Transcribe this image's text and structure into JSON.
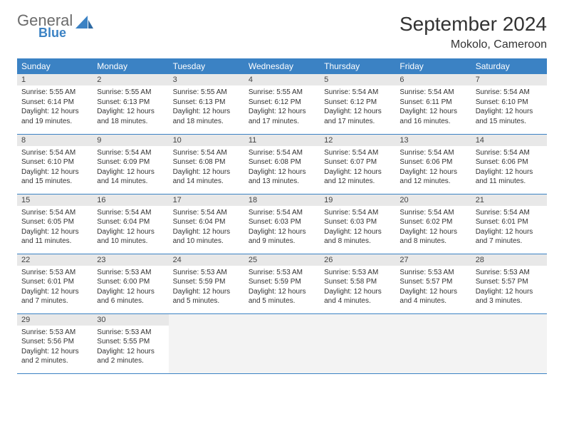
{
  "logo": {
    "general": "General",
    "blue": "Blue"
  },
  "title": "September 2024",
  "location": "Mokolo, Cameroon",
  "colors": {
    "header_bg": "#3b82c4",
    "header_fg": "#ffffff",
    "daynum_bg": "#e8e8e8",
    "row_divider": "#3b82c4",
    "logo_gray": "#6b6b6b",
    "logo_blue": "#3b82c4",
    "page_bg": "#ffffff",
    "text": "#333333"
  },
  "weekdays": [
    "Sunday",
    "Monday",
    "Tuesday",
    "Wednesday",
    "Thursday",
    "Friday",
    "Saturday"
  ],
  "grid": {
    "start_weekday": 0,
    "days_in_month": 30,
    "rows": 5,
    "cols": 7
  },
  "days": [
    {
      "n": 1,
      "sunrise": "5:55 AM",
      "sunset": "6:14 PM",
      "daylight": "12 hours and 19 minutes."
    },
    {
      "n": 2,
      "sunrise": "5:55 AM",
      "sunset": "6:13 PM",
      "daylight": "12 hours and 18 minutes."
    },
    {
      "n": 3,
      "sunrise": "5:55 AM",
      "sunset": "6:13 PM",
      "daylight": "12 hours and 18 minutes."
    },
    {
      "n": 4,
      "sunrise": "5:55 AM",
      "sunset": "6:12 PM",
      "daylight": "12 hours and 17 minutes."
    },
    {
      "n": 5,
      "sunrise": "5:54 AM",
      "sunset": "6:12 PM",
      "daylight": "12 hours and 17 minutes."
    },
    {
      "n": 6,
      "sunrise": "5:54 AM",
      "sunset": "6:11 PM",
      "daylight": "12 hours and 16 minutes."
    },
    {
      "n": 7,
      "sunrise": "5:54 AM",
      "sunset": "6:10 PM",
      "daylight": "12 hours and 15 minutes."
    },
    {
      "n": 8,
      "sunrise": "5:54 AM",
      "sunset": "6:10 PM",
      "daylight": "12 hours and 15 minutes."
    },
    {
      "n": 9,
      "sunrise": "5:54 AM",
      "sunset": "6:09 PM",
      "daylight": "12 hours and 14 minutes."
    },
    {
      "n": 10,
      "sunrise": "5:54 AM",
      "sunset": "6:08 PM",
      "daylight": "12 hours and 14 minutes."
    },
    {
      "n": 11,
      "sunrise": "5:54 AM",
      "sunset": "6:08 PM",
      "daylight": "12 hours and 13 minutes."
    },
    {
      "n": 12,
      "sunrise": "5:54 AM",
      "sunset": "6:07 PM",
      "daylight": "12 hours and 12 minutes."
    },
    {
      "n": 13,
      "sunrise": "5:54 AM",
      "sunset": "6:06 PM",
      "daylight": "12 hours and 12 minutes."
    },
    {
      "n": 14,
      "sunrise": "5:54 AM",
      "sunset": "6:06 PM",
      "daylight": "12 hours and 11 minutes."
    },
    {
      "n": 15,
      "sunrise": "5:54 AM",
      "sunset": "6:05 PM",
      "daylight": "12 hours and 11 minutes."
    },
    {
      "n": 16,
      "sunrise": "5:54 AM",
      "sunset": "6:04 PM",
      "daylight": "12 hours and 10 minutes."
    },
    {
      "n": 17,
      "sunrise": "5:54 AM",
      "sunset": "6:04 PM",
      "daylight": "12 hours and 10 minutes."
    },
    {
      "n": 18,
      "sunrise": "5:54 AM",
      "sunset": "6:03 PM",
      "daylight": "12 hours and 9 minutes."
    },
    {
      "n": 19,
      "sunrise": "5:54 AM",
      "sunset": "6:03 PM",
      "daylight": "12 hours and 8 minutes."
    },
    {
      "n": 20,
      "sunrise": "5:54 AM",
      "sunset": "6:02 PM",
      "daylight": "12 hours and 8 minutes."
    },
    {
      "n": 21,
      "sunrise": "5:54 AM",
      "sunset": "6:01 PM",
      "daylight": "12 hours and 7 minutes."
    },
    {
      "n": 22,
      "sunrise": "5:53 AM",
      "sunset": "6:01 PM",
      "daylight": "12 hours and 7 minutes."
    },
    {
      "n": 23,
      "sunrise": "5:53 AM",
      "sunset": "6:00 PM",
      "daylight": "12 hours and 6 minutes."
    },
    {
      "n": 24,
      "sunrise": "5:53 AM",
      "sunset": "5:59 PM",
      "daylight": "12 hours and 5 minutes."
    },
    {
      "n": 25,
      "sunrise": "5:53 AM",
      "sunset": "5:59 PM",
      "daylight": "12 hours and 5 minutes."
    },
    {
      "n": 26,
      "sunrise": "5:53 AM",
      "sunset": "5:58 PM",
      "daylight": "12 hours and 4 minutes."
    },
    {
      "n": 27,
      "sunrise": "5:53 AM",
      "sunset": "5:57 PM",
      "daylight": "12 hours and 4 minutes."
    },
    {
      "n": 28,
      "sunrise": "5:53 AM",
      "sunset": "5:57 PM",
      "daylight": "12 hours and 3 minutes."
    },
    {
      "n": 29,
      "sunrise": "5:53 AM",
      "sunset": "5:56 PM",
      "daylight": "12 hours and 2 minutes."
    },
    {
      "n": 30,
      "sunrise": "5:53 AM",
      "sunset": "5:55 PM",
      "daylight": "12 hours and 2 minutes."
    }
  ],
  "labels": {
    "sunrise": "Sunrise:",
    "sunset": "Sunset:",
    "daylight": "Daylight:"
  }
}
